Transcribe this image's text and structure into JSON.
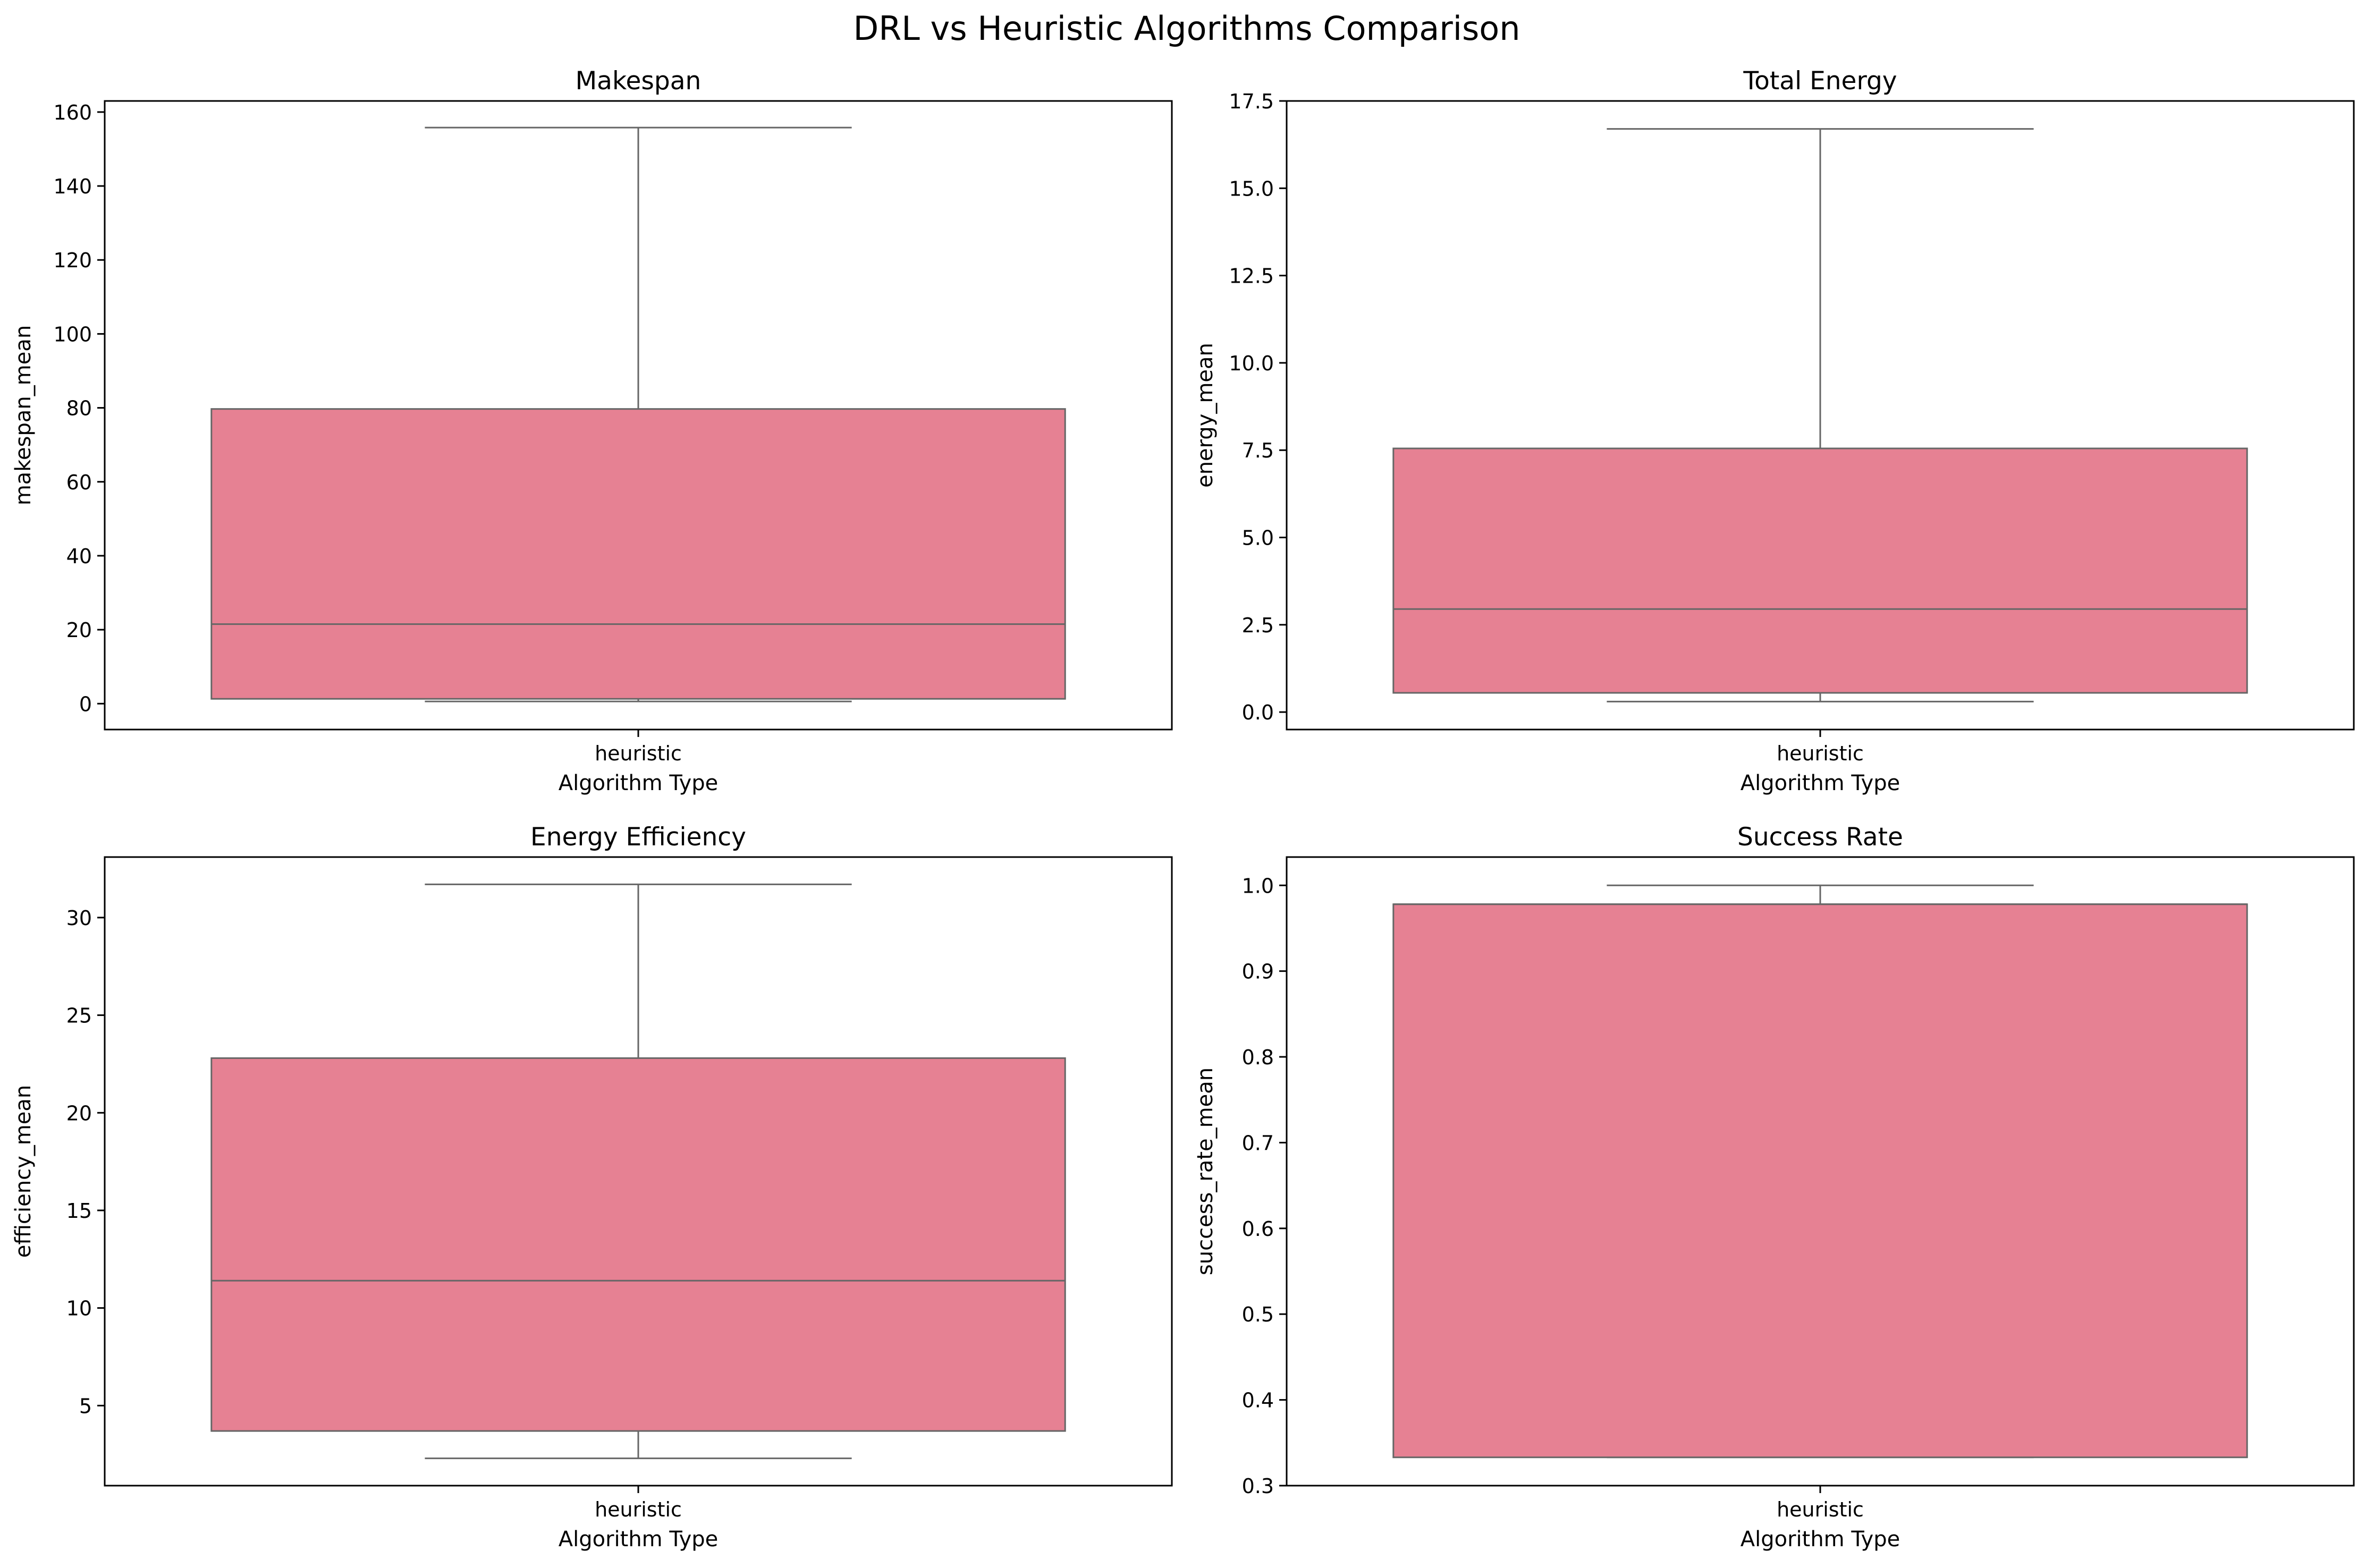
{
  "figure": {
    "title": "DRL vs Heuristic Algorithms Comparison",
    "box_color": "#e68193",
    "line_color": "#666666"
  },
  "chart_data": [
    {
      "type": "box",
      "title": "Makespan",
      "xlabel": "Algorithm Type",
      "ylabel": "makespan_mean",
      "categories": [
        "heuristic"
      ],
      "ylim": [
        -7,
        163
      ],
      "yticks": [
        0,
        20,
        40,
        60,
        80,
        100,
        120,
        140,
        160
      ],
      "ytick_labels": [
        "0",
        "20",
        "40",
        "60",
        "80",
        "100",
        "120",
        "140",
        "160"
      ],
      "boxes": [
        {
          "category": "heuristic",
          "whisker_low": 0.6,
          "q1": 1.3,
          "median": 21.5,
          "q3": 79.7,
          "whisker_high": 155.8
        }
      ]
    },
    {
      "type": "box",
      "title": "Total Energy",
      "xlabel": "Algorithm Type",
      "ylabel": "energy_mean",
      "categories": [
        "heuristic"
      ],
      "ylim": [
        -0.5,
        17.5
      ],
      "yticks": [
        0.0,
        2.5,
        5.0,
        7.5,
        10.0,
        12.5,
        15.0,
        17.5
      ],
      "ytick_labels": [
        "0.0",
        "2.5",
        "5.0",
        "7.5",
        "10.0",
        "12.5",
        "15.0",
        "17.5"
      ],
      "boxes": [
        {
          "category": "heuristic",
          "whisker_low": 0.3,
          "q1": 0.55,
          "median": 2.95,
          "q3": 7.55,
          "whisker_high": 16.7
        }
      ]
    },
    {
      "type": "box",
      "title": "Energy Efficiency",
      "xlabel": "Algorithm Type",
      "ylabel": "efficiency_mean",
      "categories": [
        "heuristic"
      ],
      "ylim": [
        0.9,
        33.1
      ],
      "yticks": [
        5,
        10,
        15,
        20,
        25,
        30
      ],
      "ytick_labels": [
        "5",
        "10",
        "15",
        "20",
        "25",
        "30"
      ],
      "boxes": [
        {
          "category": "heuristic",
          "whisker_low": 2.3,
          "q1": 3.7,
          "median": 11.4,
          "q3": 22.8,
          "whisker_high": 31.7
        }
      ]
    },
    {
      "type": "box",
      "title": "Success Rate",
      "xlabel": "Algorithm Type",
      "ylabel": "success_rate_mean",
      "categories": [
        "heuristic"
      ],
      "ylim": [
        0.3,
        1.033
      ],
      "yticks": [
        0.3,
        0.4,
        0.5,
        0.6,
        0.7,
        0.8,
        0.9,
        1.0
      ],
      "ytick_labels": [
        "0.3",
        "0.4",
        "0.5",
        "0.6",
        "0.7",
        "0.8",
        "0.9",
        "1.0"
      ],
      "boxes": [
        {
          "category": "heuristic",
          "whisker_low": 0.333,
          "q1": 0.333,
          "median": 0.978,
          "q3": 0.978,
          "whisker_high": 1.0
        }
      ]
    }
  ]
}
